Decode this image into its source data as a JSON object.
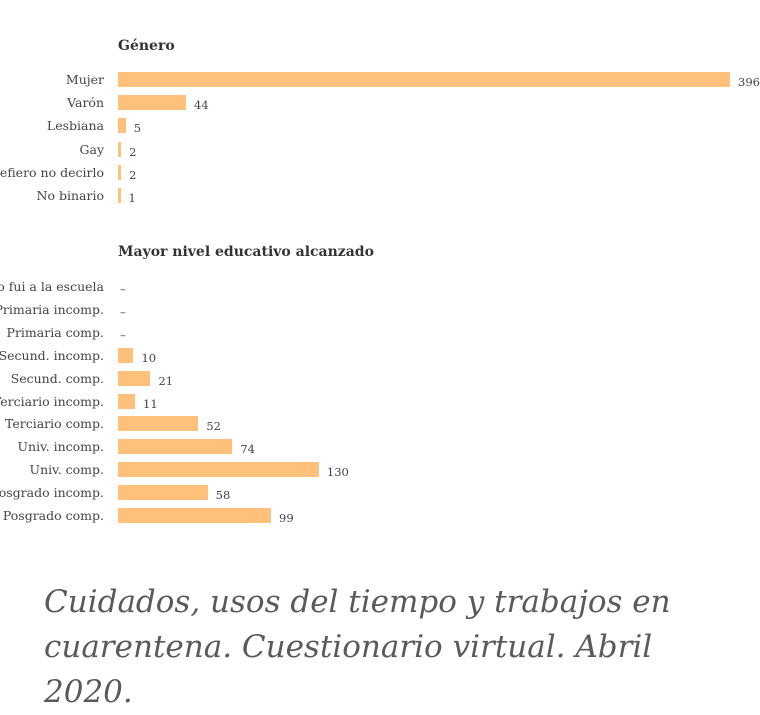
{
  "chart_data": [
    {
      "type": "bar",
      "orientation": "horizontal",
      "title": "Género",
      "categories": [
        "Mujer",
        "Varón",
        "Lesbiana",
        "Gay",
        "Prefiero no decirlo",
        "No binario"
      ],
      "values": [
        396,
        44,
        5,
        2,
        2,
        1
      ],
      "value_labels": [
        "396",
        "44",
        "5",
        "2",
        "2",
        "1"
      ],
      "color": "#fec07a"
    },
    {
      "type": "bar",
      "orientation": "horizontal",
      "title": "Mayor nivel educativo alcanzado",
      "categories": [
        "No fui a la escuela",
        "Primaria incomp.",
        "Primaria comp.",
        "Secund. incomp.",
        "Secund. comp.",
        "Terciario incomp.",
        "Terciario comp.",
        "Univ. incomp.",
        "Univ. comp.",
        "Posgrado incomp.",
        "Posgrado comp."
      ],
      "values": [
        0,
        0,
        0,
        10,
        21,
        11,
        52,
        74,
        130,
        58,
        99
      ],
      "value_labels": [
        "–",
        "–",
        "–",
        "10",
        "21",
        "11",
        "52",
        "74",
        "130",
        "58",
        "99"
      ],
      "color": "#fec07a"
    }
  ],
  "caption": "Cuidados, usos del tiempo y trabajos en cuarentena. Cuestionario virtual. Abril 2020."
}
